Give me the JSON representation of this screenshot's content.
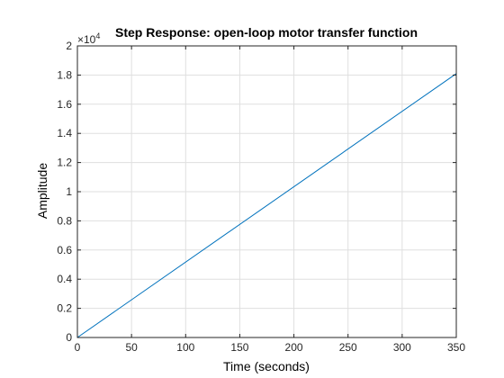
{
  "chart_data": {
    "type": "line",
    "title": "Step Response: open-loop motor transfer function",
    "xlabel": "Time (seconds)",
    "ylabel": "Amplitude",
    "xlim": [
      0,
      350
    ],
    "ylim": [
      0,
      2
    ],
    "y_exponent_base": "×10",
    "y_exponent_power": "4",
    "grid": true,
    "xticks": [
      0,
      50,
      100,
      150,
      200,
      250,
      300,
      350
    ],
    "yticks": [
      0,
      0.2,
      0.4,
      0.6,
      0.8,
      1,
      1.2,
      1.4,
      1.6,
      1.8,
      2
    ],
    "xtick_labels": [
      "0",
      "50",
      "100",
      "150",
      "200",
      "250",
      "300",
      "350"
    ],
    "ytick_labels": [
      "0",
      "0.2",
      "0.4",
      "0.6",
      "0.8",
      "1",
      "1.2",
      "1.4",
      "1.6",
      "1.8",
      "2"
    ],
    "series": [
      {
        "color": "#0072bd",
        "x": [
          0,
          350
        ],
        "y": [
          0,
          1.81
        ]
      }
    ]
  },
  "colors": {
    "axis": "#262626",
    "grid": "#dfdfdf",
    "series": "#0072bd"
  }
}
